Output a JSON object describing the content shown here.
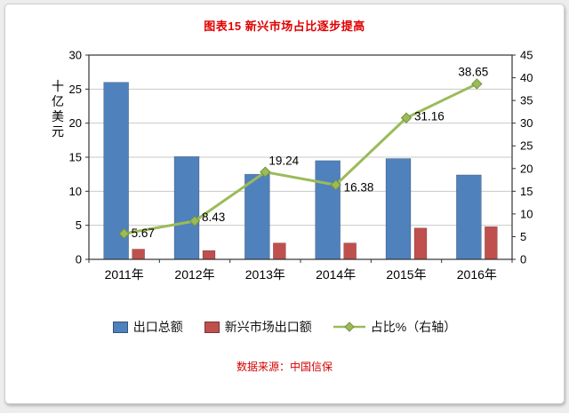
{
  "page": {
    "title": "图表15 新兴市场占比逐步提高",
    "source": "数据来源：中国信保"
  },
  "chart_data": {
    "type": "bar",
    "combo": "bar+line",
    "categories": [
      "2011年",
      "2012年",
      "2013年",
      "2014年",
      "2015年",
      "2016年"
    ],
    "series": [
      {
        "name": "出口总额",
        "type": "bar",
        "axis": "left",
        "color": "#4F81BD",
        "values": [
          26.0,
          15.1,
          12.5,
          14.5,
          14.8,
          12.4
        ]
      },
      {
        "name": "新兴市场出口额",
        "type": "bar",
        "axis": "left",
        "color": "#C0504D",
        "values": [
          1.5,
          1.3,
          2.4,
          2.4,
          4.6,
          4.8
        ]
      },
      {
        "name": "占比%（右轴）",
        "type": "line",
        "axis": "right",
        "color": "#9BBB59",
        "marker": "diamond",
        "values": [
          5.67,
          8.43,
          19.24,
          16.38,
          31.16,
          38.65
        ],
        "point_labels": [
          "5.67",
          "8.43",
          "19.24",
          "16.38",
          "31.16",
          "38.65"
        ]
      }
    ],
    "left_axis": {
      "title": "十亿美元",
      "min": 0,
      "max": 30,
      "step": 5
    },
    "right_axis": {
      "title": "",
      "min": 0,
      "max": 45,
      "step": 5
    },
    "grid": true,
    "legend_position": "bottom"
  }
}
